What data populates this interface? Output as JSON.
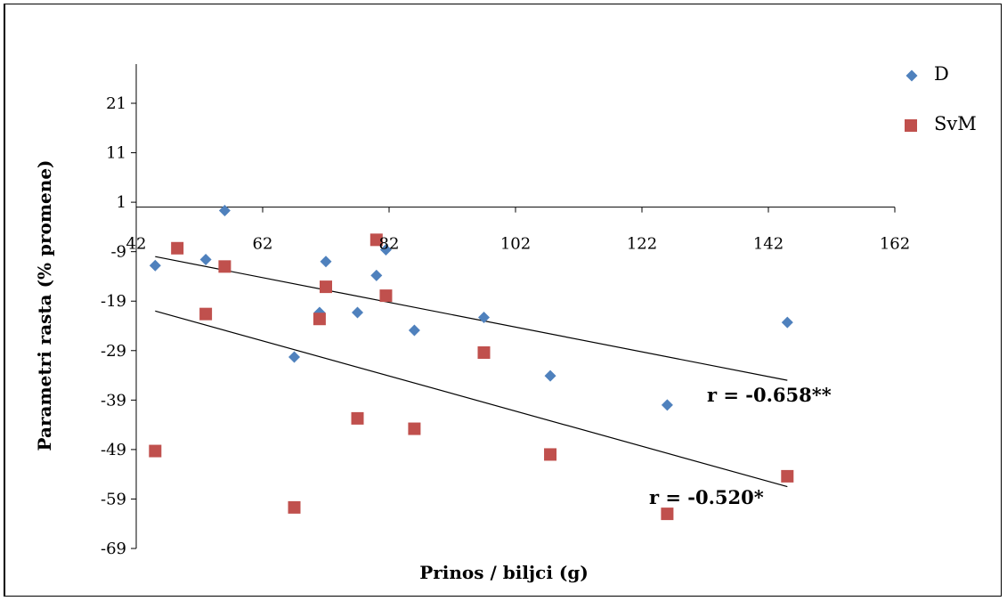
{
  "chart_data": {
    "type": "scatter",
    "xlabel": "Prinos / biljci (g)",
    "ylabel": "Parametri rasta (% promene)",
    "xlim": [
      42,
      162
    ],
    "ylim": [
      -69,
      26
    ],
    "x_ticks": [
      42,
      62,
      82,
      102,
      122,
      142,
      162
    ],
    "y_ticks": [
      21,
      11,
      1,
      -9,
      -19,
      -29,
      -39,
      -49,
      -59,
      -69
    ],
    "x_tick_labels": [
      "42",
      "62",
      "82",
      "102",
      "122",
      "142",
      "162"
    ],
    "y_tick_labels": [
      "21",
      "11",
      "1",
      "-9",
      "-19",
      "-29",
      "-39",
      "-49",
      "-59",
      "-69"
    ],
    "x_axis_crosses_y": 0,
    "legend_position": "top-right",
    "series": [
      {
        "name": "D",
        "marker": "diamond",
        "color": "#4F81BD",
        "points": [
          [
            45,
            -11.8
          ],
          [
            53,
            -10.6
          ],
          [
            56,
            -0.7
          ],
          [
            67,
            -30.3
          ],
          [
            71,
            -21.3
          ],
          [
            72,
            -11
          ],
          [
            77,
            -21.3
          ],
          [
            80,
            -13.8
          ],
          [
            81.5,
            -8.6
          ],
          [
            86,
            -24.9
          ],
          [
            97,
            -22.3
          ],
          [
            107.5,
            -34.1
          ],
          [
            126,
            -40
          ],
          [
            145,
            -23.3
          ]
        ]
      },
      {
        "name": "SvM",
        "marker": "square",
        "color": "#C0504D",
        "points": [
          [
            45,
            -49.3
          ],
          [
            48.5,
            -8.3
          ],
          [
            53,
            -21.6
          ],
          [
            56,
            -12
          ],
          [
            67,
            -60.7
          ],
          [
            71,
            -22.6
          ],
          [
            72,
            -16.1
          ],
          [
            77,
            -42.7
          ],
          [
            80,
            -6.6
          ],
          [
            81.5,
            -17.9
          ],
          [
            86,
            -44.8
          ],
          [
            97,
            -29.4
          ],
          [
            107.5,
            -50
          ],
          [
            126,
            -62
          ],
          [
            145,
            -54.4
          ]
        ]
      }
    ],
    "trendlines": [
      {
        "series": "D",
        "from": [
          45,
          -10
        ],
        "to": [
          145,
          -35
        ]
      },
      {
        "series": "SvM",
        "from": [
          45,
          -21
        ],
        "to": [
          145,
          -56.5
        ]
      }
    ],
    "annotations": [
      "r = -0.658**",
      "r = -0.520*"
    ]
  }
}
